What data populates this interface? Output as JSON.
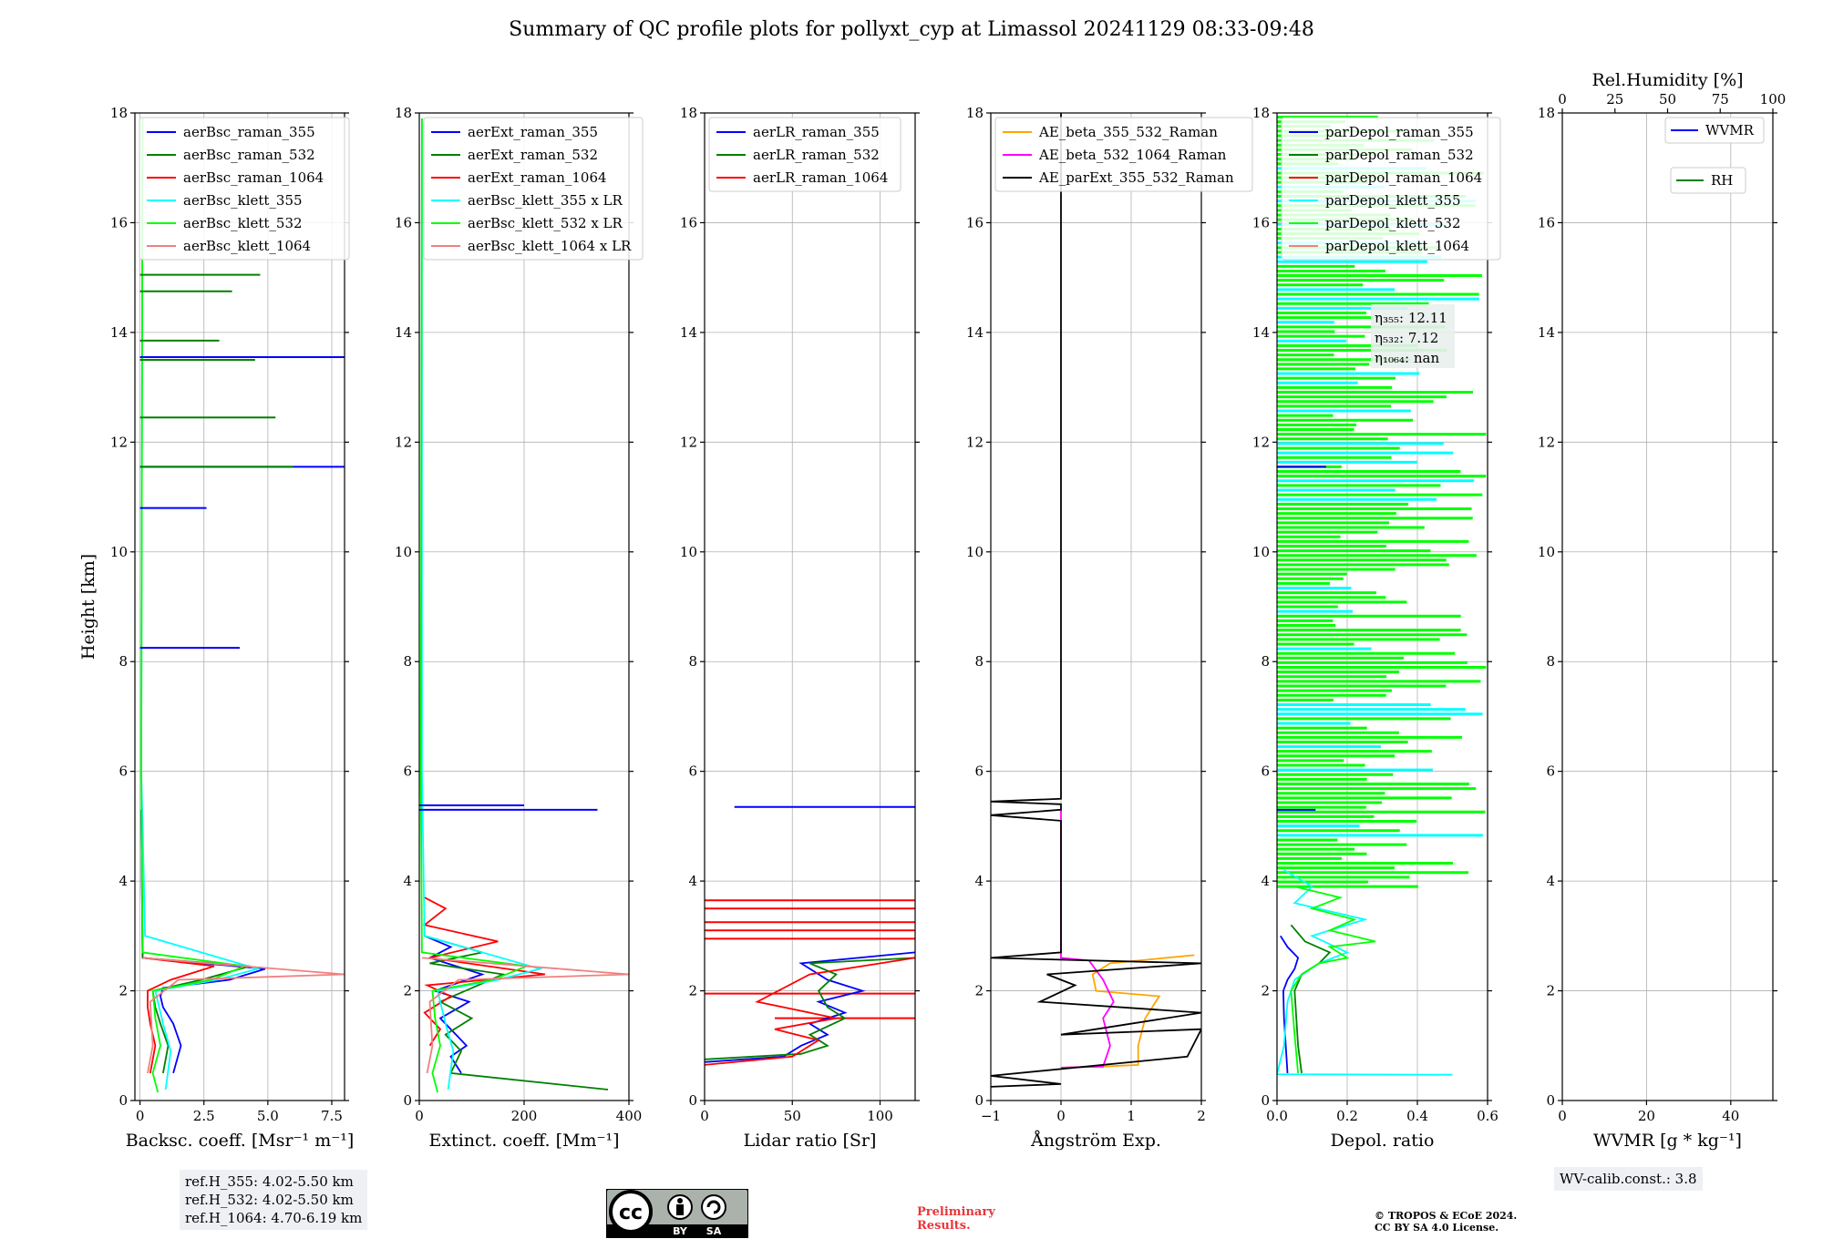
{
  "title": "Summary of QC profile plots for pollyxt_cyp at Limassol 20241129 08:33-09:48",
  "y_label": "Height [km]",
  "panels": [
    {
      "id": "backscatter",
      "xlabel": "Backsc. coeff. [Msr⁻¹ m⁻¹]",
      "xlim": [
        -0.2,
        8.0
      ],
      "xticks": [
        0,
        2.5,
        5,
        7.5
      ],
      "xtick_labels": [
        "0",
        "2.5",
        "5.0",
        "7.5"
      ],
      "legend": [
        {
          "label": "aerBsc_raman_355",
          "color": "#0000ff"
        },
        {
          "label": "aerBsc_raman_532",
          "color": "#008000"
        },
        {
          "label": "aerBsc_raman_1064",
          "color": "#ff0000"
        },
        {
          "label": "aerBsc_klett_355",
          "color": "#00ffff"
        },
        {
          "label": "aerBsc_klett_532",
          "color": "#00ff00"
        },
        {
          "label": "aerBsc_klett_1064",
          "color": "#f08080"
        }
      ]
    },
    {
      "id": "extinction",
      "xlabel": "Extinct. coeff. [Mm⁻¹]",
      "xlim": [
        0,
        400
      ],
      "xticks": [
        0,
        200,
        400
      ],
      "xtick_labels": [
        "0",
        "200",
        "400"
      ],
      "legend": [
        {
          "label": "aerExt_raman_355",
          "color": "#0000ff"
        },
        {
          "label": "aerExt_raman_532",
          "color": "#008000"
        },
        {
          "label": "aerExt_raman_1064",
          "color": "#ff0000"
        },
        {
          "label": "aerBsc_klett_355 x LR",
          "color": "#00ffff"
        },
        {
          "label": "aerBsc_klett_532 x LR",
          "color": "#00ff00"
        },
        {
          "label": "aerBsc_klett_1064 x LR",
          "color": "#f08080"
        }
      ]
    },
    {
      "id": "lidar_ratio",
      "xlabel": "Lidar ratio [Sr]",
      "xlim": [
        0,
        120
      ],
      "xticks": [
        0,
        50,
        100
      ],
      "xtick_labels": [
        "0",
        "50",
        "100"
      ],
      "legend": [
        {
          "label": "aerLR_raman_355",
          "color": "#0000ff"
        },
        {
          "label": "aerLR_raman_532",
          "color": "#008000"
        },
        {
          "label": "aerLR_raman_1064",
          "color": "#ff0000"
        }
      ]
    },
    {
      "id": "angstrom",
      "xlabel": "Ångström Exp.",
      "xlim": [
        -1,
        2
      ],
      "xticks": [
        -1,
        0,
        1,
        2
      ],
      "xtick_labels": [
        "−1",
        "0",
        "1",
        "2"
      ],
      "legend": [
        {
          "label": "AE_beta_355_532_Raman",
          "color": "#ffa500"
        },
        {
          "label": "AE_beta_532_1064_Raman",
          "color": "#ff00ff"
        },
        {
          "label": "AE_parExt_355_532_Raman",
          "color": "#000000"
        }
      ]
    },
    {
      "id": "depol",
      "xlabel": "Depol. ratio",
      "xlim": [
        0,
        0.6
      ],
      "xticks": [
        0,
        0.2,
        0.4,
        0.6
      ],
      "xtick_labels": [
        "0.0",
        "0.2",
        "0.4",
        "0.6"
      ],
      "legend": [
        {
          "label": "parDepol_raman_355",
          "color": "#0000ff"
        },
        {
          "label": "parDepol_raman_532",
          "color": "#008000"
        },
        {
          "label": "parDepol_raman_1064",
          "color": "#ff0000"
        },
        {
          "label": "parDepol_klett_355",
          "color": "#00ffff"
        },
        {
          "label": "parDepol_klett_532",
          "color": "#00ff00"
        },
        {
          "label": "parDepol_klett_1064",
          "color": "#f08080"
        }
      ],
      "eta_lines": [
        "η₃₅₅: 12.11",
        "η₅₃₂: 7.12",
        "η₁₀₆₄: nan"
      ]
    },
    {
      "id": "wvmr",
      "xlabel": "WVMR [g * kg⁻¹]",
      "xlim": [
        0,
        50
      ],
      "xticks": [
        0,
        20,
        40
      ],
      "xtick_labels": [
        "0",
        "20",
        "40"
      ],
      "top_label": "Rel.Humidity [%]",
      "top_xlim": [
        0,
        100
      ],
      "top_xticks": [
        0,
        25,
        50,
        75,
        100
      ],
      "top_xtick_labels": [
        "0",
        "25",
        "50",
        "75",
        "100"
      ],
      "legend": [
        {
          "label": "WVMR",
          "color": "#0000ff"
        },
        {
          "label": "RH",
          "color": "#008000"
        }
      ]
    }
  ],
  "chart_data": [
    {
      "type": "line",
      "panel": "backscatter",
      "ylim": [
        0,
        18
      ],
      "yticks": [
        0,
        2,
        4,
        6,
        8,
        10,
        12,
        14,
        16,
        18
      ],
      "series": [
        {
          "name": "aerBsc_raman_355",
          "color": "#0000ff",
          "x": [
            1.3,
            1.6,
            1.3,
            0.9,
            0.8,
            0.9,
            3.5,
            4.9,
            0.1,
            0.05
          ],
          "y": [
            0.5,
            1.0,
            1.4,
            1.7,
            1.9,
            2.05,
            2.2,
            2.4,
            2.6,
            5.3
          ]
        },
        {
          "name": "aerBsc_raman_532",
          "color": "#008000",
          "x": [
            0.9,
            1.1,
            0.8,
            0.6,
            0.5,
            2.4,
            4.3,
            0.1,
            0.05
          ],
          "y": [
            0.5,
            1.0,
            1.4,
            1.7,
            2.0,
            2.2,
            2.45,
            2.6,
            5.3
          ]
        },
        {
          "name": "aerBsc_raman_1064",
          "color": "#ff0000",
          "x": [
            0.4,
            0.6,
            0.4,
            0.3,
            0.3,
            1.2,
            2.9,
            0.1
          ],
          "y": [
            0.5,
            1.0,
            1.4,
            1.7,
            2.0,
            2.2,
            2.45,
            2.6
          ]
        },
        {
          "name": "aerBsc_klett_355",
          "color": "#00ffff",
          "x": [
            1.0,
            1.2,
            0.9,
            0.7,
            0.6,
            3.0,
            4.6,
            0.2,
            0.05,
            0.1
          ],
          "y": [
            0.2,
            0.9,
            1.4,
            1.8,
            2.0,
            2.2,
            2.4,
            3.0,
            6.0,
            17.9
          ]
        },
        {
          "name": "aerBsc_klett_532",
          "color": "#00ff00",
          "x": [
            0.7,
            0.5,
            0.8,
            0.6,
            0.5,
            2.8,
            4.1,
            0.1,
            0.05,
            0.1
          ],
          "y": [
            0.15,
            0.5,
            1.0,
            1.5,
            2.0,
            2.2,
            2.45,
            2.7,
            6.0,
            17.9
          ]
        },
        {
          "name": "aerBsc_klett_1064",
          "color": "#f08080",
          "x": [
            0.3,
            0.5,
            0.4,
            1.5,
            8.0,
            0.1
          ],
          "y": [
            0.5,
            1.0,
            1.8,
            2.2,
            2.3,
            2.6
          ]
        }
      ],
      "spikes": [
        {
          "color": "#0000ff",
          "height": 13.55,
          "x": 8.0
        },
        {
          "color": "#0000ff",
          "height": 11.55,
          "x": 8.0
        },
        {
          "color": "#0000ff",
          "height": 10.8,
          "x": 2.6
        },
        {
          "color": "#0000ff",
          "height": 8.25,
          "x": 3.9
        },
        {
          "color": "#008000",
          "height": 15.05,
          "x": 4.7
        },
        {
          "color": "#008000",
          "height": 14.75,
          "x": 3.6
        },
        {
          "color": "#008000",
          "height": 13.85,
          "x": 3.1
        },
        {
          "color": "#008000",
          "height": 13.5,
          "x": 4.5
        },
        {
          "color": "#008000",
          "height": 12.45,
          "x": 5.3
        },
        {
          "color": "#008000",
          "height": 11.55,
          "x": 6.0
        }
      ]
    },
    {
      "type": "line",
      "panel": "extinction",
      "ylim": [
        0,
        18
      ],
      "series": [
        {
          "name": "aerExt_raman_355",
          "color": "#0000ff",
          "x": [
            80,
            60,
            90,
            70,
            40,
            95,
            30,
            120,
            20,
            60,
            10
          ],
          "y": [
            0.5,
            0.8,
            1.0,
            1.2,
            1.5,
            1.8,
            2.0,
            2.3,
            2.6,
            2.8,
            3.0
          ]
        },
        {
          "name": "aerExt_raman_532",
          "color": "#008000",
          "x": [
            360,
            60,
            80,
            50,
            100,
            40,
            160,
            20,
            120,
            10
          ],
          "y": [
            0.2,
            0.5,
            0.9,
            1.2,
            1.5,
            1.8,
            2.3,
            2.5,
            2.7,
            3.0
          ]
        },
        {
          "name": "aerExt_raman_1064",
          "color": "#ff0000",
          "x": [
            20,
            40,
            10,
            60,
            15,
            240,
            20,
            150,
            10,
            50,
            10
          ],
          "y": [
            1.0,
            1.3,
            1.6,
            1.9,
            2.1,
            2.3,
            2.6,
            2.9,
            3.2,
            3.5,
            3.7
          ]
        },
        {
          "name": "aerBsc_klett_355 x LR",
          "color": "#00ffff",
          "x": [
            55,
            65,
            50,
            40,
            35,
            150,
            230,
            10,
            5,
            5
          ],
          "y": [
            0.2,
            0.9,
            1.4,
            1.8,
            2.0,
            2.2,
            2.4,
            3.0,
            6.0,
            17.9
          ]
        },
        {
          "name": "aerBsc_klett_532 x LR",
          "color": "#00ff00",
          "x": [
            35,
            25,
            40,
            30,
            25,
            140,
            205,
            5,
            3,
            5
          ],
          "y": [
            0.15,
            0.5,
            1.0,
            1.5,
            2.0,
            2.2,
            2.45,
            2.7,
            6.0,
            17.9
          ]
        },
        {
          "name": "aerBsc_klett_1064 x LR",
          "color": "#f08080",
          "x": [
            15,
            25,
            20,
            75,
            400,
            5
          ],
          "y": [
            0.5,
            1.0,
            1.8,
            2.2,
            2.3,
            2.6
          ]
        }
      ],
      "spikes": [
        {
          "color": "#0000ff",
          "height": 5.3,
          "x": 340
        },
        {
          "color": "#0000ff",
          "height": 5.38,
          "x": 200
        }
      ]
    },
    {
      "type": "line",
      "panel": "lidar_ratio",
      "ylim": [
        0,
        18
      ],
      "series": [
        {
          "name": "aerLR_raman_355",
          "color": "#0000ff",
          "x": [
            0,
            45,
            55,
            70,
            60,
            80,
            65,
            90,
            70,
            55,
            120
          ],
          "y": [
            0.7,
            0.8,
            1.0,
            1.2,
            1.4,
            1.6,
            1.8,
            2.0,
            2.2,
            2.5,
            2.7
          ]
        },
        {
          "name": "aerLR_raman_532",
          "color": "#008000",
          "x": [
            0,
            55,
            70,
            60,
            80,
            70,
            65,
            75,
            60,
            120
          ],
          "y": [
            0.75,
            0.85,
            1.0,
            1.2,
            1.5,
            1.7,
            2.0,
            2.3,
            2.5,
            2.6
          ]
        },
        {
          "name": "aerLR_raman_1064",
          "color": "#ff0000",
          "x": [
            0,
            50,
            65,
            40,
            75,
            30,
            60,
            120
          ],
          "y": [
            0.65,
            0.8,
            1.1,
            1.3,
            1.5,
            1.8,
            2.3,
            2.6
          ]
        }
      ],
      "hlines": [
        {
          "color": "#0000ff",
          "height": 5.35,
          "x0": 17,
          "x1": 120
        },
        {
          "color": "#ff0000",
          "height": 2.95,
          "x0": 0,
          "x1": 120
        },
        {
          "color": "#ff0000",
          "height": 3.1,
          "x0": 0,
          "x1": 120
        },
        {
          "color": "#ff0000",
          "height": 3.25,
          "x0": 0,
          "x1": 120
        },
        {
          "color": "#ff0000",
          "height": 3.5,
          "x0": 0,
          "x1": 120
        },
        {
          "color": "#ff0000",
          "height": 3.65,
          "x0": 0,
          "x1": 120
        },
        {
          "color": "#ff0000",
          "height": 1.95,
          "x0": 0,
          "x1": 120
        },
        {
          "color": "#ff0000",
          "height": 1.5,
          "x0": 40,
          "x1": 120
        }
      ]
    },
    {
      "type": "line",
      "panel": "angstrom",
      "ylim": [
        0,
        18
      ],
      "series": [
        {
          "name": "AE_beta_355_532_Raman",
          "color": "#ffa500",
          "x": [
            0,
            0.6,
            1.1,
            1.1,
            1.2,
            1.3,
            1.4,
            0.5,
            0.45,
            0.7,
            1.9
          ],
          "y": [
            0.6,
            0.62,
            0.65,
            1.0,
            1.5,
            1.7,
            1.9,
            2.0,
            2.3,
            2.5,
            2.65
          ]
        },
        {
          "name": "AE_beta_532_1064_Raman",
          "color": "#ff00ff",
          "x": [
            0,
            0.6,
            0.7,
            0.6,
            0.75,
            0.6,
            0.4,
            0,
            0
          ],
          "y": [
            0.6,
            0.62,
            1.0,
            1.5,
            1.8,
            2.2,
            2.55,
            2.6,
            5.3
          ]
        },
        {
          "name": "AE_parExt_355_532_Raman",
          "color": "#000000",
          "x": [
            -1,
            0,
            -1,
            1.8,
            2,
            0,
            2,
            -0.3,
            0.2,
            -0.2,
            2,
            -1,
            0,
            0,
            -1,
            0,
            0,
            -1,
            0,
            0
          ],
          "y": [
            0.25,
            0.3,
            0.45,
            0.8,
            1.3,
            1.2,
            1.6,
            1.8,
            2.1,
            2.3,
            2.5,
            2.6,
            2.7,
            5.1,
            5.2,
            5.3,
            5.4,
            5.45,
            5.5,
            18
          ]
        }
      ]
    },
    {
      "type": "line",
      "panel": "depol",
      "ylim": [
        0,
        18
      ],
      "series": [
        {
          "name": "parDepol_raman_355",
          "color": "#0000ff",
          "x": [
            0.03,
            0.025,
            0.02,
            0.018,
            0.03,
            0.05,
            0.06,
            0.03,
            0.01
          ],
          "y": [
            0.5,
            1.0,
            1.5,
            2.0,
            2.2,
            2.4,
            2.6,
            2.8,
            3.0
          ]
        },
        {
          "name": "parDepol_raman_532",
          "color": "#008000",
          "x": [
            0.07,
            0.06,
            0.055,
            0.05,
            0.07,
            0.12,
            0.15,
            0.08,
            0.04
          ],
          "y": [
            0.5,
            1.0,
            1.5,
            2.0,
            2.3,
            2.5,
            2.7,
            2.9,
            3.2
          ]
        },
        {
          "name": "parDepol_klett_355",
          "color": "#00ffff",
          "x": [
            0.5,
            0.0,
            0.02,
            0.03,
            0.05,
            0.12,
            0.2,
            0.1,
            0.25,
            0.05,
            0.1,
            0.02
          ],
          "y": [
            0.47,
            0.48,
            1.0,
            1.8,
            2.2,
            2.5,
            2.7,
            3.0,
            3.3,
            3.6,
            3.9,
            4.2
          ]
        },
        {
          "name": "parDepol_klett_532",
          "color": "#00ff00",
          "x": [
            0.06,
            0.05,
            0.04,
            0.07,
            0.12,
            0.2,
            0.15,
            0.28,
            0.15,
            0.22,
            0.1,
            0.18,
            0.05
          ],
          "y": [
            0.5,
            1.2,
            2.0,
            2.3,
            2.5,
            2.6,
            2.8,
            2.9,
            3.1,
            3.3,
            3.5,
            3.7,
            3.9
          ]
        }
      ],
      "noise_region_km": [
        3.9,
        18
      ],
      "spikes": [
        {
          "color": "#0000ff",
          "height": 11.55,
          "x": 0.14
        },
        {
          "color": "#0000ff",
          "height": 5.3,
          "x": 0.11
        }
      ]
    },
    {
      "type": "line",
      "panel": "wvmr",
      "ylim": [
        0,
        18
      ],
      "series": [
        {
          "name": "WVMR",
          "color": "#0000ff",
          "x": [],
          "y": []
        },
        {
          "name": "RH",
          "color": "#008000",
          "x": [],
          "y": []
        }
      ]
    }
  ],
  "ref_heights": [
    "ref.H_355: 4.02-5.50 km",
    "ref.H_532: 4.02-5.50 km",
    "ref.H_1064: 4.70-6.19 km"
  ],
  "wv_calib": "WV-calib.const.: 3.8",
  "license": {
    "cc": "cc",
    "by": "BY",
    "sa": "SA"
  },
  "preliminary": [
    "Preliminary",
    "Results."
  ],
  "copyright": [
    "© TROPOS & ECoE 2024.",
    "CC BY SA 4.0 License."
  ]
}
